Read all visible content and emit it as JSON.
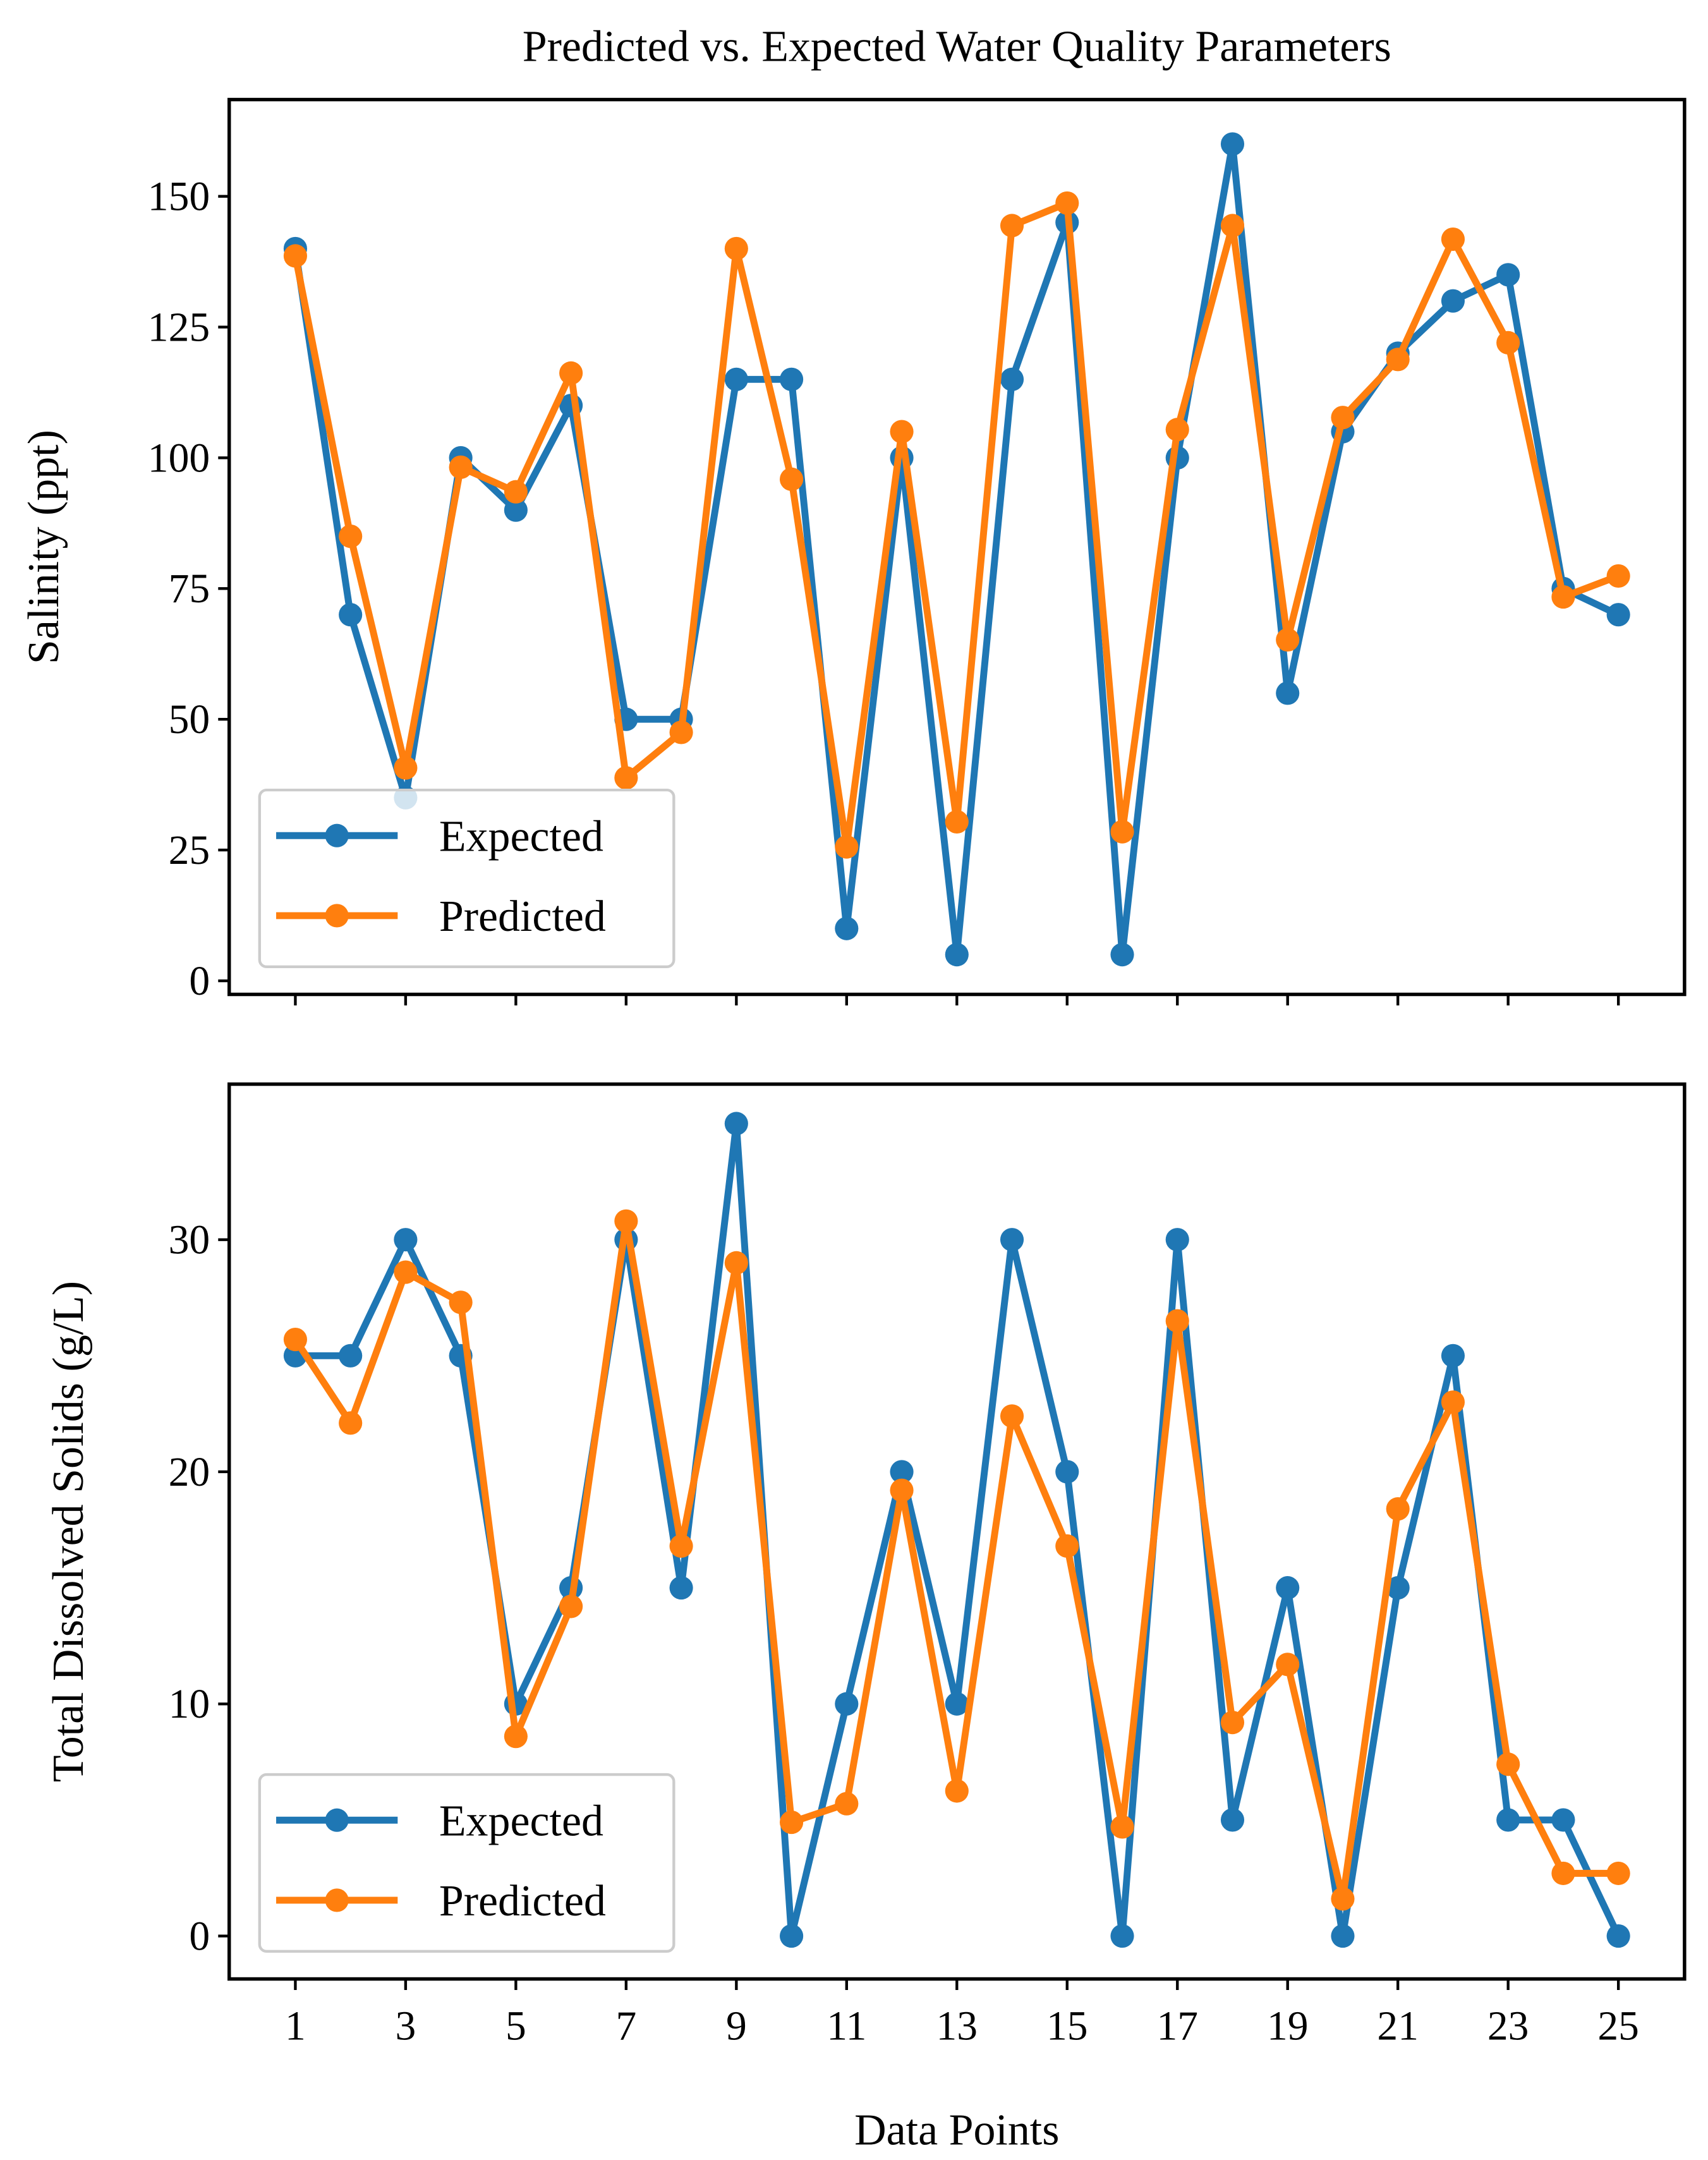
{
  "chart_data": {
    "title": "Predicted vs. Expected Water Quality Parameters",
    "xlabel": "Data Points",
    "x": [
      1,
      2,
      3,
      4,
      5,
      6,
      7,
      8,
      9,
      10,
      11,
      12,
      13,
      14,
      15,
      16,
      17,
      18,
      19,
      20,
      21,
      22,
      23,
      24,
      25
    ],
    "xticks": [
      1,
      3,
      5,
      7,
      9,
      11,
      13,
      15,
      17,
      19,
      21,
      23,
      25
    ],
    "xlim": [
      -0.2,
      26.2
    ],
    "colors": {
      "Expected": "#1f77b4",
      "Predicted": "#ff7f0e"
    },
    "panels": [
      {
        "type": "line",
        "ylabel": "Salinity (ppt)",
        "ylim": [
          -2.6,
          168.5
        ],
        "yticks": [
          0,
          25,
          50,
          75,
          100,
          125,
          150
        ],
        "legend": "lower-left",
        "grid": false,
        "series": [
          {
            "name": "Expected",
            "values": [
              140,
              70,
              35,
              100,
              90,
              110,
              50,
              50,
              115,
              115,
              10,
              100,
              5,
              115,
              145,
              5,
              100,
              160,
              55,
              105,
              120,
              130,
              135,
              75,
              70
            ]
          },
          {
            "name": "Predicted",
            "values": [
              138.6,
              85,
              40.7,
              98.2,
              93.5,
              116.2,
              38.8,
              47.5,
              140,
              95.9,
              25.6,
              105,
              30.4,
              144.4,
              148.7,
              28.5,
              105.4,
              144.4,
              65.2,
              107.7,
              118.8,
              141.8,
              122,
              73.4,
              77.4
            ]
          }
        ]
      },
      {
        "type": "line",
        "ylabel": "Total Dissolved Solids (g/L)",
        "ylim": [
          -1.85,
          36.7
        ],
        "yticks": [
          0,
          10,
          20,
          30
        ],
        "legend": "lower-left",
        "grid": false,
        "series": [
          {
            "name": "Expected",
            "values": [
              25,
              25,
              30,
              25,
              10,
              15,
              30,
              15,
              35,
              0,
              10,
              20,
              10,
              30,
              20,
              0,
              30,
              5,
              15,
              0,
              15,
              25,
              5,
              5,
              0
            ]
          },
          {
            "name": "Predicted",
            "values": [
              25.7,
              22.1,
              28.6,
              27.3,
              8.6,
              14.2,
              30.8,
              16.8,
              29.0,
              4.9,
              5.7,
              19.2,
              6.25,
              22.4,
              16.8,
              4.7,
              26.5,
              9.2,
              11.7,
              1.6,
              18.4,
              23.0,
              7.4,
              2.7,
              2.7
            ]
          }
        ]
      }
    ]
  }
}
